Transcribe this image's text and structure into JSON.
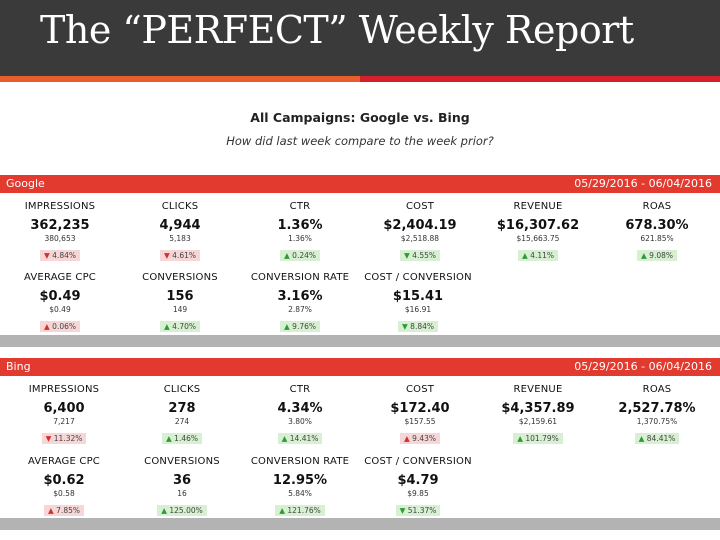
{
  "slide": {
    "title": "The “PERFECT” Weekly Report"
  },
  "report": {
    "title": "All Campaigns: Google vs. Bing",
    "subtitle": "How did last week compare to the week prior?"
  },
  "colors": {
    "title_bar": "#3a3a3a",
    "section_bar": "#e23a2e",
    "increase": "#2e9a3a",
    "decrease": "#d32f2f"
  },
  "google": {
    "name": "Google",
    "date_range": "05/29/2016 - 06/04/2016",
    "metrics": [
      {
        "label": "IMPRESSIONS",
        "value": "362,235",
        "prior": "380,653",
        "arrow": "▼",
        "change": "4.84%",
        "tone": "red"
      },
      {
        "label": "CLICKS",
        "value": "4,944",
        "prior": "5,183",
        "arrow": "▼",
        "change": "4.61%",
        "tone": "red"
      },
      {
        "label": "CTR",
        "value": "1.36%",
        "prior": "1.36%",
        "arrow": "▲",
        "change": "0.24%",
        "tone": "green"
      },
      {
        "label": "COST",
        "value": "$2,404.19",
        "prior": "$2,518.88",
        "arrow": "▼",
        "change": "4.55%",
        "tone": "green"
      },
      {
        "label": "REVENUE",
        "value": "$16,307.62",
        "prior": "$15,663.75",
        "arrow": "▲",
        "change": "4.11%",
        "tone": "green"
      },
      {
        "label": "ROAS",
        "value": "678.30%",
        "prior": "621.85%",
        "arrow": "▲",
        "change": "9.08%",
        "tone": "green"
      },
      {
        "label": "AVERAGE CPC",
        "value": "$0.49",
        "prior": "$0.49",
        "arrow": "▲",
        "change": "0.06%",
        "tone": "red"
      },
      {
        "label": "CONVERSIONS",
        "value": "156",
        "prior": "149",
        "arrow": "▲",
        "change": "4.70%",
        "tone": "green"
      },
      {
        "label": "CONVERSION RATE",
        "value": "3.16%",
        "prior": "2.87%",
        "arrow": "▲",
        "change": "9.76%",
        "tone": "green"
      },
      {
        "label": "COST / CONVERSION",
        "value": "$15.41",
        "prior": "$16.91",
        "arrow": "▼",
        "change": "8.84%",
        "tone": "green"
      }
    ]
  },
  "bing": {
    "name": "Bing",
    "date_range": "05/29/2016 - 06/04/2016",
    "metrics": [
      {
        "label": "IMPRESSIONS",
        "value": "6,400",
        "prior": "7,217",
        "arrow": "▼",
        "change": "11.32%",
        "tone": "red"
      },
      {
        "label": "CLICKS",
        "value": "278",
        "prior": "274",
        "arrow": "▲",
        "change": "1.46%",
        "tone": "green"
      },
      {
        "label": "CTR",
        "value": "4.34%",
        "prior": "3.80%",
        "arrow": "▲",
        "change": "14.41%",
        "tone": "green"
      },
      {
        "label": "COST",
        "value": "$172.40",
        "prior": "$157.55",
        "arrow": "▲",
        "change": "9.43%",
        "tone": "red"
      },
      {
        "label": "REVENUE",
        "value": "$4,357.89",
        "prior": "$2,159.61",
        "arrow": "▲",
        "change": "101.79%",
        "tone": "green"
      },
      {
        "label": "ROAS",
        "value": "2,527.78%",
        "prior": "1,370.75%",
        "arrow": "▲",
        "change": "84.41%",
        "tone": "green"
      },
      {
        "label": "AVERAGE CPC",
        "value": "$0.62",
        "prior": "$0.58",
        "arrow": "▲",
        "change": "7.85%",
        "tone": "red"
      },
      {
        "label": "CONVERSIONS",
        "value": "36",
        "prior": "16",
        "arrow": "▲",
        "change": "125.00%",
        "tone": "green"
      },
      {
        "label": "CONVERSION RATE",
        "value": "12.95%",
        "prior": "5.84%",
        "arrow": "▲",
        "change": "121.76%",
        "tone": "green"
      },
      {
        "label": "COST / CONVERSION",
        "value": "$4.79",
        "prior": "$9.85",
        "arrow": "▼",
        "change": "51.37%",
        "tone": "green"
      }
    ]
  }
}
